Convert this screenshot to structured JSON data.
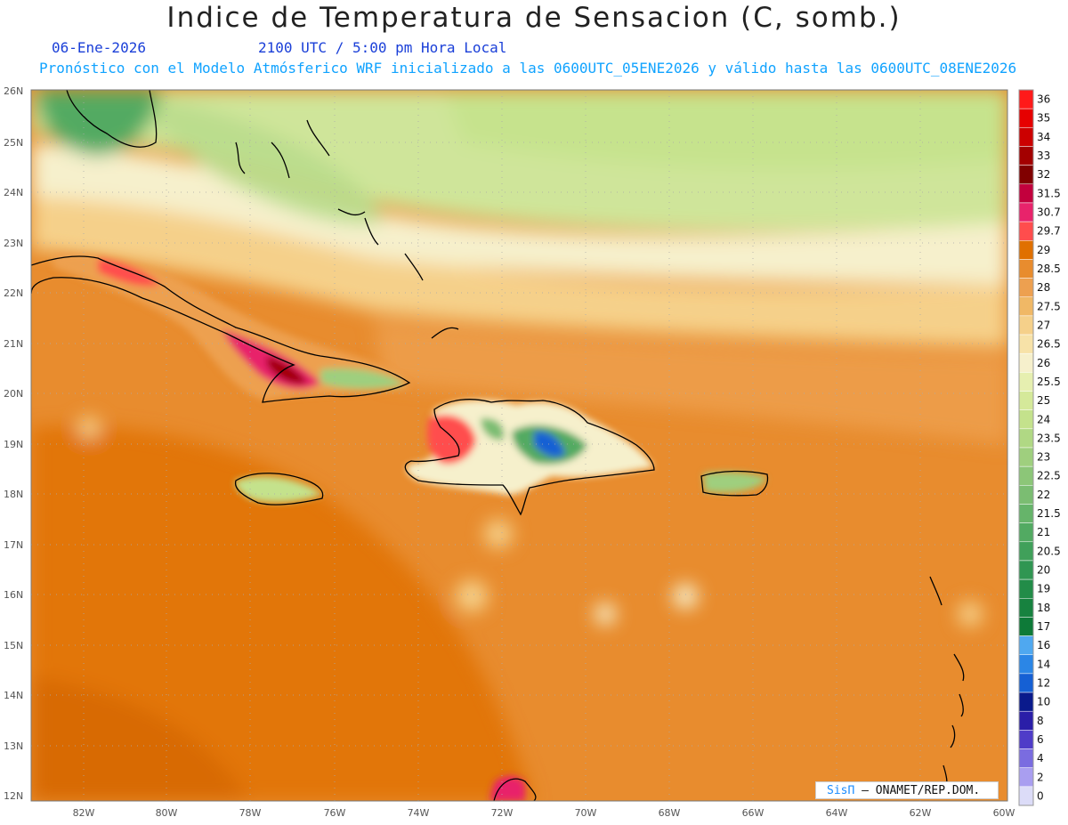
{
  "title": "Indice de Temperatura de Sensacion (C, somb.)",
  "date": "06-Ene-2026",
  "time": "2100 UTC / 5:00 pm Hora Local",
  "model_info": "Pronóstico con el Modelo Atmósferico WRF inicializado a las 0600UTC_05ENE2026 y válido hasta las  0600UTC_08ENE2026",
  "credit": {
    "brand": "SisΠ",
    "org": "– ONAMET/REP.DOM."
  },
  "axes": {
    "lat_labels": [
      "26N",
      "25N",
      "24N",
      "23N",
      "22N",
      "21N",
      "20N",
      "19N",
      "18N",
      "17N",
      "16N",
      "15N",
      "14N",
      "13N",
      "12N"
    ],
    "lon_labels": [
      "82W",
      "80W",
      "78W",
      "76W",
      "74W",
      "72W",
      "70W",
      "68W",
      "66W",
      "64W",
      "62W",
      "60W"
    ]
  },
  "colorbar": [
    {
      "label": "36",
      "color": "#ff1a1a"
    },
    {
      "label": "35",
      "color": "#e60000"
    },
    {
      "label": "34",
      "color": "#cc0000"
    },
    {
      "label": "33",
      "color": "#a30000"
    },
    {
      "label": "32",
      "color": "#800000"
    },
    {
      "label": "31.5",
      "color": "#c2003d"
    },
    {
      "label": "30.7",
      "color": "#e8236b"
    },
    {
      "label": "29.7",
      "color": "#ff4d4d"
    },
    {
      "label": "29",
      "color": "#e07000"
    },
    {
      "label": "28.5",
      "color": "#e88c2e"
    },
    {
      "label": "28",
      "color": "#eda050"
    },
    {
      "label": "27.5",
      "color": "#f0b866"
    },
    {
      "label": "27",
      "color": "#f5d08a"
    },
    {
      "label": "26.5",
      "color": "#f7e2a8"
    },
    {
      "label": "26",
      "color": "#f6f0cc"
    },
    {
      "label": "25.5",
      "color": "#e6efb0"
    },
    {
      "label": "25",
      "color": "#d5e99a"
    },
    {
      "label": "24",
      "color": "#c4e28c"
    },
    {
      "label": "23.5",
      "color": "#b0d884"
    },
    {
      "label": "23",
      "color": "#9fcf7e"
    },
    {
      "label": "22.5",
      "color": "#8cc678"
    },
    {
      "label": "22",
      "color": "#7bbd72"
    },
    {
      "label": "21.5",
      "color": "#66b46a"
    },
    {
      "label": "21",
      "color": "#52aa62"
    },
    {
      "label": "20.5",
      "color": "#40a05a"
    },
    {
      "label": "20",
      "color": "#309652"
    },
    {
      "label": "19",
      "color": "#228c48"
    },
    {
      "label": "18",
      "color": "#17823f"
    },
    {
      "label": "17",
      "color": "#0e7a38"
    },
    {
      "label": "16",
      "color": "#4fa8f0"
    },
    {
      "label": "14",
      "color": "#2b86e6"
    },
    {
      "label": "12",
      "color": "#1560d4"
    },
    {
      "label": "10",
      "color": "#0a1a8c"
    },
    {
      "label": "8",
      "color": "#2a1ea8"
    },
    {
      "label": "6",
      "color": "#4f3cc8"
    },
    {
      "label": "4",
      "color": "#7a6ce0"
    },
    {
      "label": "2",
      "color": "#a99ef0"
    },
    {
      "label": "0",
      "color": "#dcdcf8"
    }
  ]
}
